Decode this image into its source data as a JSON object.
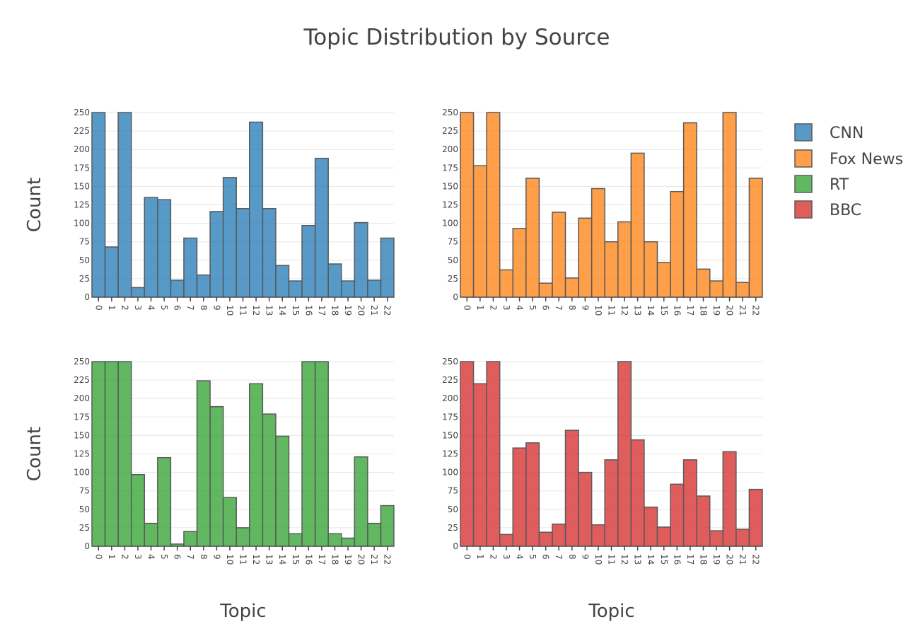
{
  "title": "Topic Distribution by Source",
  "legend": {
    "items": [
      {
        "label": "CNN",
        "color": "#1f77b4"
      },
      {
        "label": "Fox News",
        "color": "#ff7f0e"
      },
      {
        "label": "RT",
        "color": "#2ca02c"
      },
      {
        "label": "BBC",
        "color": "#d62728"
      }
    ]
  },
  "chart_data": [
    {
      "type": "bar",
      "series": [
        {
          "name": "CNN",
          "values": [
            250,
            68,
            250,
            13,
            135,
            132,
            23,
            80,
            30,
            116,
            162,
            120,
            237,
            120,
            43,
            22,
            97,
            188,
            45,
            22,
            101,
            23,
            80
          ]
        }
      ],
      "categories": [
        "0",
        "1",
        "2",
        "3",
        "4",
        "5",
        "6",
        "7",
        "8",
        "9",
        "10",
        "11",
        "12",
        "13",
        "14",
        "15",
        "16",
        "17",
        "18",
        "19",
        "20",
        "21",
        "22"
      ],
      "xlabel": "",
      "ylabel": "Count",
      "ylim": [
        0,
        250
      ],
      "yticks": [
        "0",
        "25",
        "50",
        "75",
        "100",
        "125",
        "150",
        "175",
        "200",
        "225",
        "250"
      ],
      "color": "#1f77b4",
      "grid": true
    },
    {
      "type": "bar",
      "series": [
        {
          "name": "Fox News",
          "values": [
            250,
            178,
            250,
            37,
            93,
            161,
            19,
            115,
            26,
            107,
            147,
            75,
            102,
            195,
            75,
            47,
            143,
            236,
            38,
            22,
            250,
            20,
            161
          ]
        }
      ],
      "categories": [
        "0",
        "1",
        "2",
        "3",
        "4",
        "5",
        "6",
        "7",
        "8",
        "9",
        "10",
        "11",
        "12",
        "13",
        "14",
        "15",
        "16",
        "17",
        "18",
        "19",
        "20",
        "21",
        "22"
      ],
      "xlabel": "",
      "ylabel": "",
      "ylim": [
        0,
        250
      ],
      "yticks": [
        "0",
        "25",
        "50",
        "75",
        "100",
        "125",
        "150",
        "175",
        "200",
        "225",
        "250"
      ],
      "color": "#ff7f0e",
      "grid": true
    },
    {
      "type": "bar",
      "series": [
        {
          "name": "RT",
          "values": [
            250,
            250,
            250,
            97,
            31,
            120,
            3,
            20,
            224,
            189,
            66,
            25,
            220,
            179,
            149,
            17,
            250,
            250,
            17,
            11,
            121,
            31,
            55
          ]
        }
      ],
      "categories": [
        "0",
        "1",
        "2",
        "3",
        "4",
        "5",
        "6",
        "7",
        "8",
        "9",
        "10",
        "11",
        "12",
        "13",
        "14",
        "15",
        "16",
        "17",
        "18",
        "19",
        "20",
        "21",
        "22"
      ],
      "xlabel": "Topic",
      "ylabel": "Count",
      "ylim": [
        0,
        250
      ],
      "yticks": [
        "0",
        "25",
        "50",
        "75",
        "100",
        "125",
        "150",
        "175",
        "200",
        "225",
        "250"
      ],
      "color": "#2ca02c",
      "grid": true
    },
    {
      "type": "bar",
      "series": [
        {
          "name": "BBC",
          "values": [
            250,
            220,
            250,
            16,
            133,
            140,
            19,
            30,
            157,
            100,
            29,
            117,
            250,
            144,
            53,
            26,
            84,
            117,
            68,
            21,
            128,
            23,
            77
          ]
        }
      ],
      "categories": [
        "0",
        "1",
        "2",
        "3",
        "4",
        "5",
        "6",
        "7",
        "8",
        "9",
        "10",
        "11",
        "12",
        "13",
        "14",
        "15",
        "16",
        "17",
        "18",
        "19",
        "20",
        "21",
        "22"
      ],
      "xlabel": "Topic",
      "ylabel": "",
      "ylim": [
        0,
        250
      ],
      "yticks": [
        "0",
        "25",
        "50",
        "75",
        "100",
        "125",
        "150",
        "175",
        "200",
        "225",
        "250"
      ],
      "color": "#d62728",
      "grid": true
    }
  ]
}
